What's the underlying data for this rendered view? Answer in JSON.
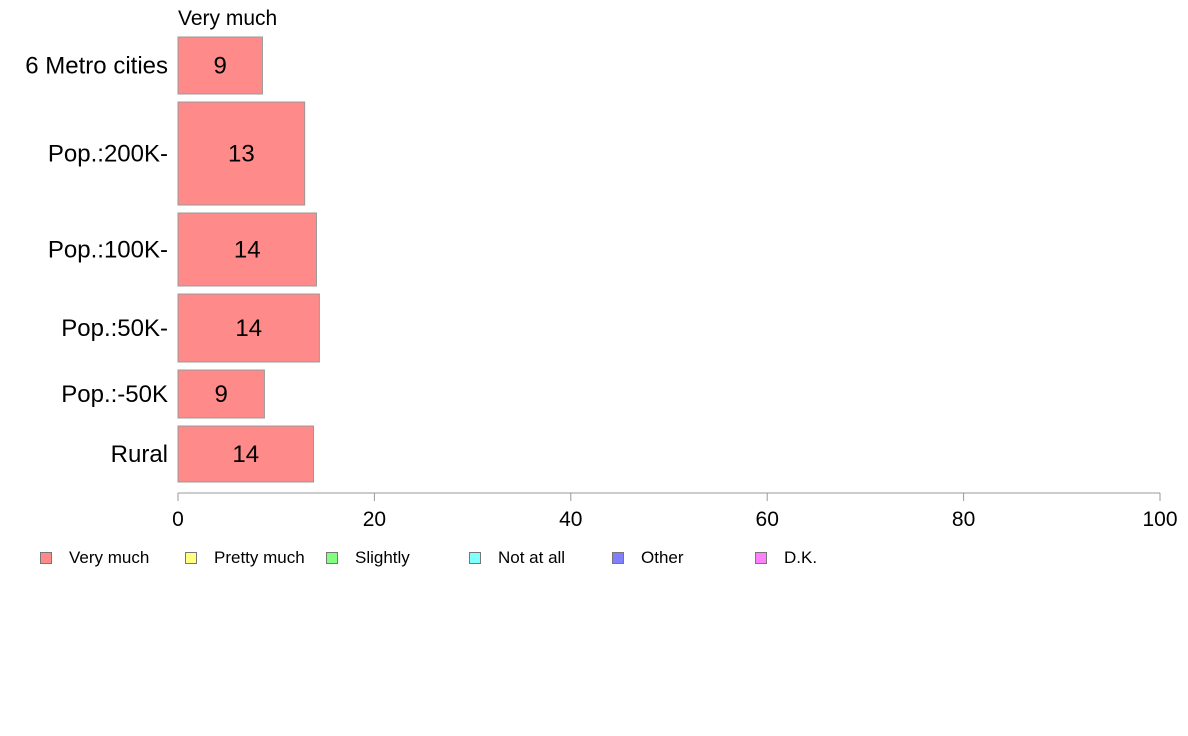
{
  "chart_data": {
    "type": "bar",
    "orientation": "horizontal",
    "stacked": true,
    "panel_label": "Very much",
    "categories": [
      "6 Metro cities",
      "Pop.:200K-",
      "Pop.:100K-",
      "Pop.:50K-",
      "Pop.:-50K",
      "Rural"
    ],
    "series": [
      {
        "name": "Very much",
        "color": "#ff8a8a",
        "values": [
          8.6,
          12.9,
          14.1,
          14.4,
          8.8,
          13.8
        ],
        "labels": [
          "9",
          "13",
          "14",
          "14",
          "9",
          "14"
        ]
      }
    ],
    "xlim": [
      0,
      100
    ],
    "xticks": [
      "0",
      "20",
      "40",
      "60",
      "80",
      "100"
    ],
    "grid": false,
    "legend_position": "bottom",
    "legend": [
      {
        "label": "Very much",
        "color": "#ff8a8a"
      },
      {
        "label": "Pretty much",
        "color": "#ffff80"
      },
      {
        "label": "Slightly",
        "color": "#80ff80"
      },
      {
        "label": "Not at all",
        "color": "#80ffff"
      },
      {
        "label": "Other",
        "color": "#8080ff"
      },
      {
        "label": "D.K.",
        "color": "#ff80ff"
      }
    ]
  }
}
